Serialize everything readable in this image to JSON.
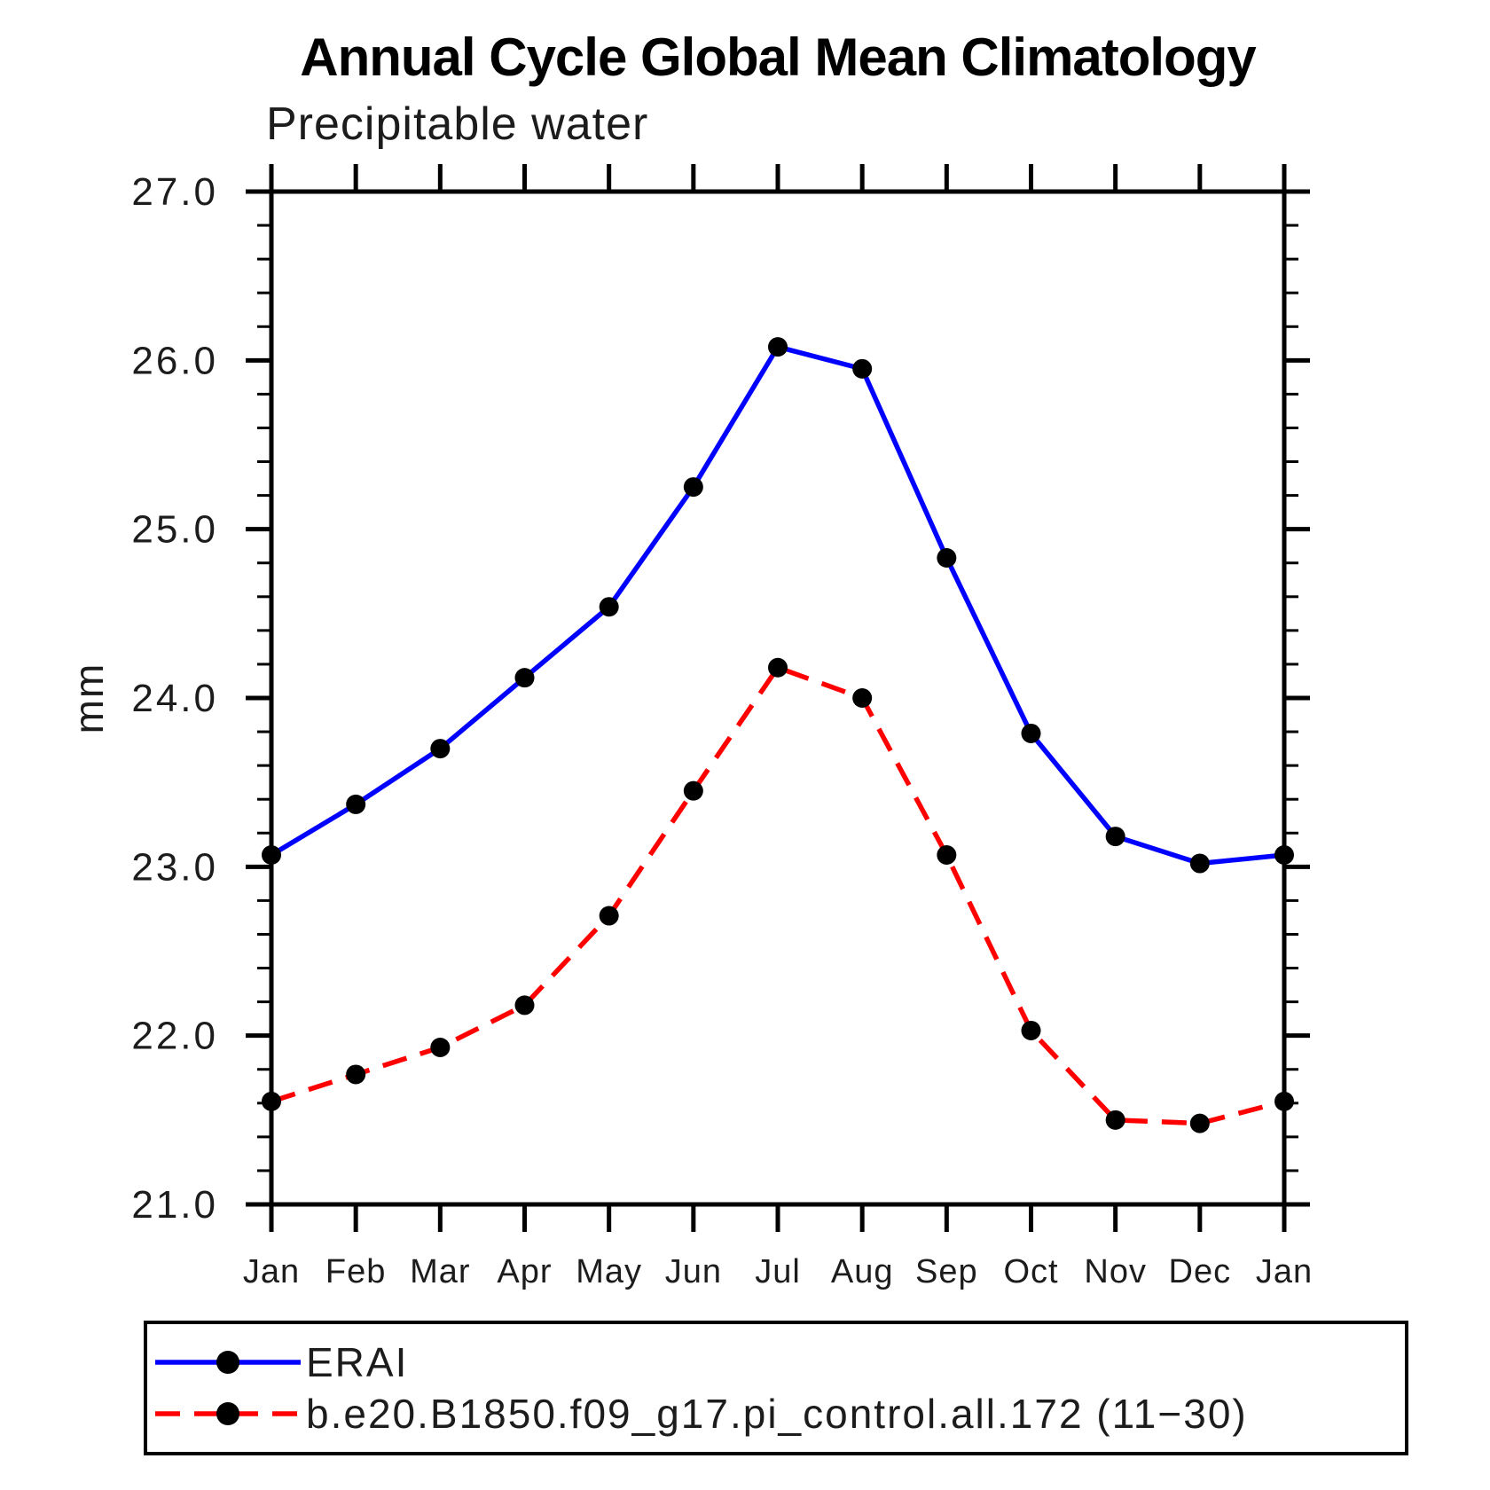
{
  "title": "Annual Cycle Global Mean Climatology",
  "subtitle": "Precipitable water",
  "chart_data": {
    "type": "line",
    "title": "Annual Cycle Global Mean Climatology",
    "subtitle": "Precipitable water",
    "xlabel": "",
    "ylabel": "mm",
    "categories": [
      "Jan",
      "Feb",
      "Mar",
      "Apr",
      "May",
      "Jun",
      "Jul",
      "Aug",
      "Sep",
      "Oct",
      "Nov",
      "Dec",
      "Jan"
    ],
    "ylim": [
      21.0,
      27.0
    ],
    "ytick_major_step": 1.0,
    "ytick_minor_step": 0.2,
    "ytick_labels": [
      "21.0",
      "22.0",
      "23.0",
      "24.0",
      "25.0",
      "26.0",
      "27.0"
    ],
    "grid": false,
    "legend_position": "bottom-left-box",
    "series": [
      {
        "name": "ERAI",
        "color": "#0000ff",
        "line_style": "solid",
        "marker": "filled-circle",
        "marker_color": "#000000",
        "values": [
          23.07,
          23.37,
          23.7,
          24.12,
          24.54,
          25.25,
          26.08,
          25.95,
          24.83,
          23.79,
          23.18,
          23.02,
          23.07
        ]
      },
      {
        "name": "b.e20.B1850.f09_g17.pi_control.all.172 (11−30)",
        "color": "#ff0000",
        "line_style": "dashed",
        "marker": "filled-circle",
        "marker_color": "#000000",
        "values": [
          21.61,
          21.77,
          21.93,
          22.18,
          22.71,
          23.45,
          24.18,
          24.0,
          23.07,
          22.03,
          21.5,
          21.48,
          21.61
        ]
      }
    ]
  }
}
